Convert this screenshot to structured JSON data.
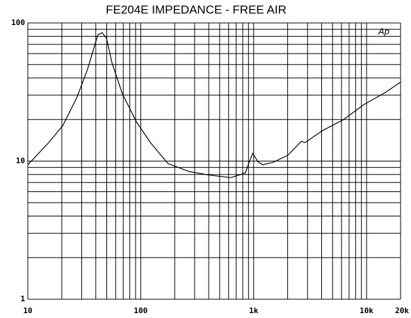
{
  "chart_data": {
    "type": "line",
    "title": "FE204E IMPEDANCE - FREE AIR",
    "logo": "Ap",
    "x": [
      10,
      15.3,
      20.4,
      27.2,
      33.7,
      41.7,
      45.5,
      49.8,
      55.6,
      68.9,
      91.8,
      122,
      174,
      268,
      412,
      631,
      843,
      930,
      983,
      1090,
      1200,
      1490,
      2000,
      2650,
      2850,
      4060,
      6200,
      9500,
      14600,
      20000
    ],
    "series": [
      {
        "name": "Impedance",
        "color": "#000000",
        "values": [
          9.4,
          13.6,
          18.1,
          28.9,
          45.9,
          82,
          85,
          77.5,
          51.5,
          30.6,
          19.2,
          13.6,
          9.6,
          8.4,
          7.9,
          7.6,
          8.2,
          10.2,
          11.4,
          9.9,
          9.4,
          9.8,
          11.0,
          13.9,
          13.6,
          16.6,
          19.9,
          25.7,
          31.3,
          37.3
        ]
      }
    ],
    "xlog": true,
    "ylog": true,
    "xlim": [
      10,
      20000
    ],
    "ylim": [
      1,
      100
    ],
    "xticks": [
      10,
      100,
      {
        "value": 1000,
        "label": "1k"
      },
      {
        "value": 10000,
        "label": "10k"
      },
      {
        "value": 20000,
        "label": "20k"
      }
    ],
    "yticks": [
      1,
      10,
      100
    ],
    "xgrid": [
      20,
      30,
      40,
      50,
      60,
      70,
      80,
      90,
      200,
      300,
      400,
      500,
      600,
      700,
      800,
      900,
      2000,
      3000,
      4000,
      5000,
      6000,
      7000,
      8000,
      9000
    ],
    "ygrid": [
      2,
      3,
      4,
      5,
      6,
      7,
      8,
      9,
      20,
      30,
      40,
      50,
      60,
      70,
      80,
      90
    ],
    "grid": true
  }
}
